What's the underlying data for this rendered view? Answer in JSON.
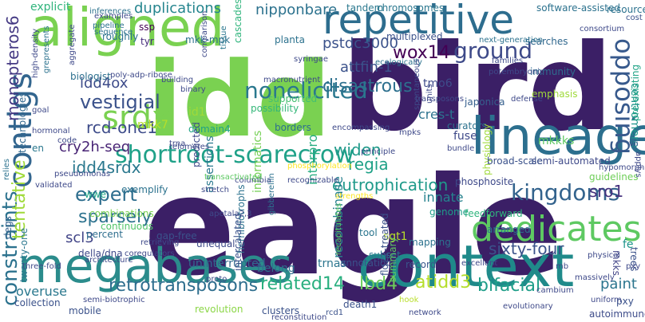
{
  "words": [
    {
      "text": "eagle",
      "color": "#3b1f66"
    },
    {
      "text": "bird",
      "color": "#3b1f66"
    },
    {
      "text": "idd",
      "color": "#7ad151"
    },
    {
      "text": "aligned",
      "color": "#7ad151"
    },
    {
      "text": "context",
      "color": "#1f8a8a"
    },
    {
      "text": "megabases",
      "color": "#2b8c8c"
    },
    {
      "text": "lineage",
      "color": "#2c6f8e"
    },
    {
      "text": "repetitive",
      "color": "#2d6d8e"
    },
    {
      "text": "contigs",
      "color": "#32658e"
    },
    {
      "text": "dedicates",
      "color": "#5ec962"
    },
    {
      "text": "shortroot-scarecrow",
      "color": "#1fa188"
    },
    {
      "text": "kingdoms",
      "color": "#33638d"
    },
    {
      "text": "ground",
      "color": "#3e4a89"
    },
    {
      "text": "opposing",
      "color": "#37598c"
    },
    {
      "text": "srdx",
      "color": "#7ad151"
    },
    {
      "text": "nonelicited",
      "color": "#2a788e"
    },
    {
      "text": "retrotransposons",
      "color": "#2e6e8e"
    },
    {
      "text": "vestigial",
      "color": "#3b528b"
    },
    {
      "text": "constraints",
      "color": "#2c728e"
    },
    {
      "text": "monopteros6",
      "color": "#443983"
    },
    {
      "text": "tentative",
      "color": "#a0da39"
    },
    {
      "text": "expert",
      "color": "#2e6e8e"
    },
    {
      "text": "sixty-four",
      "color": "#3b528b"
    },
    {
      "text": "eutrophication",
      "color": "#1f9a8a"
    },
    {
      "text": "related14",
      "color": "#29af7f"
    },
    {
      "text": "sparsely",
      "color": "#2c728e"
    },
    {
      "text": "wox14",
      "color": "#440154"
    },
    {
      "text": "idd4ox",
      "color": "#3e4c8a"
    },
    {
      "text": "rcd-one1",
      "color": "#3e4c8a"
    },
    {
      "text": "cry2h-seq",
      "color": "#482475"
    },
    {
      "text": "idd4srdx",
      "color": "#2a788e"
    },
    {
      "text": "bifacial",
      "color": "#1f9e89"
    },
    {
      "text": "pstdc3000",
      "color": "#3b528b"
    },
    {
      "text": "lbd4",
      "color": "#6ccd5a"
    },
    {
      "text": "atidd3",
      "color": "#b5de2b"
    },
    {
      "text": "widen",
      "color": "#1f9a8a"
    },
    {
      "text": "regia",
      "color": "#1fa187"
    },
    {
      "text": "sro1",
      "color": "#46327e"
    },
    {
      "text": "scl3",
      "color": "#414487"
    },
    {
      "text": "attfin-1",
      "color": "#3b528b"
    },
    {
      "text": "disastrous",
      "color": "#2d708e"
    },
    {
      "text": "duplications",
      "color": "#25858e"
    },
    {
      "text": "nipponbare",
      "color": "#2c728e"
    },
    {
      "text": "explicit",
      "color": "#2fb47c"
    },
    {
      "text": "interpro",
      "color": "#27ad81"
    },
    {
      "text": "recombinase",
      "color": "#27808e"
    },
    {
      "text": "tmo6",
      "color": "#3e4c8a"
    },
    {
      "text": "cres-t",
      "color": "#2c728e"
    },
    {
      "text": "paint",
      "color": "#2b758e"
    },
    {
      "text": "innate",
      "color": "#26828e"
    },
    {
      "text": "centromere",
      "color": "#1f958b"
    },
    {
      "text": "wwe",
      "color": "#20a486"
    },
    {
      "text": "sgt1",
      "color": "#b8de29"
    },
    {
      "text": "mkk7",
      "color": "#b5de2b"
    },
    {
      "text": "id1",
      "color": "#a0da39"
    },
    {
      "text": "mkkks",
      "color": "#5ec962"
    },
    {
      "text": "overuse",
      "color": "#2a788e"
    },
    {
      "text": "belong",
      "color": "#2e6e8e"
    },
    {
      "text": "trnas",
      "color": "#2b758e"
    },
    {
      "text": "uninterrupted",
      "color": "#31688e"
    },
    {
      "text": "annotations",
      "color": "#3b528b"
    },
    {
      "text": "record",
      "color": "#39568c"
    },
    {
      "text": "autoimmune",
      "color": "#3e4c8a"
    },
    {
      "text": "fuse",
      "color": "#3e4989"
    },
    {
      "text": "domain4",
      "color": "#20a386"
    },
    {
      "text": "assertions",
      "color": "#2a788e"
    },
    {
      "text": "informatics",
      "color": "#75d054"
    },
    {
      "text": "mapping",
      "color": "#2c728e"
    },
    {
      "text": "genome",
      "color": "#1e9c89"
    },
    {
      "text": "arranged",
      "color": "#2b748e"
    },
    {
      "text": "feedforward",
      "color": "#2fb47c"
    },
    {
      "text": "phosphosite",
      "color": "#3e4989"
    },
    {
      "text": "curators",
      "color": "#2c728e"
    },
    {
      "text": "japonica",
      "color": "#355f8d"
    },
    {
      "text": "immunity",
      "color": "#2f6c8e"
    },
    {
      "text": "searches",
      "color": "#31688e"
    },
    {
      "text": "emphasis",
      "color": "#9fda3a"
    },
    {
      "text": "guidelines",
      "color": "#6ece58"
    },
    {
      "text": "pxy",
      "color": "#3b528b"
    },
    {
      "text": "mkks",
      "color": "#414487"
    },
    {
      "text": "trees",
      "color": "#3b528b"
    },
    {
      "text": "fe",
      "color": "#1f958b"
    },
    {
      "text": "pre-existing",
      "color": "#20a386"
    },
    {
      "text": "resource",
      "color": "#2c728e"
    },
    {
      "text": "multiplexed",
      "color": "#3b528b"
    },
    {
      "text": "chromosomes",
      "color": "#2a778e"
    },
    {
      "text": "cascades",
      "color": "#2fb47c"
    },
    {
      "text": "tyr",
      "color": "#472d7b"
    },
    {
      "text": "ssp",
      "color": "#440154"
    },
    {
      "text": "possibility",
      "color": "#35b779"
    },
    {
      "text": "supported",
      "color": "#44bf70"
    },
    {
      "text": "borders",
      "color": "#2d708e"
    },
    {
      "text": "predicted",
      "color": "#3e4a89"
    },
    {
      "text": "unequal",
      "color": "#3e4a89"
    },
    {
      "text": "continuous",
      "color": "#52c569"
    },
    {
      "text": "percent",
      "color": "#2e6e8e"
    },
    {
      "text": "combinations",
      "color": "#7ad151"
    },
    {
      "text": "exemplify",
      "color": "#2c728e"
    },
    {
      "text": "en",
      "color": "#2a788e"
    },
    {
      "text": "degs",
      "color": "#34618d"
    },
    {
      "text": "biologist",
      "color": "#2d708e"
    },
    {
      "text": "roughly",
      "color": "#2c728e"
    },
    {
      "text": "mkk-mpk",
      "color": "#2c728e"
    },
    {
      "text": "planta",
      "color": "#2c728e"
    },
    {
      "text": "tissue",
      "color": "#2a778e"
    },
    {
      "text": "tandem",
      "color": "#2a788e"
    },
    {
      "text": "software-assisted",
      "color": "#2c728e"
    },
    {
      "text": "next-generation",
      "color": "#2c728e"
    },
    {
      "text": "families",
      "color": "#3e4989"
    },
    {
      "text": "subset",
      "color": "#2a778e"
    },
    {
      "text": "tool",
      "color": "#2b758e"
    },
    {
      "text": "summary",
      "color": "#5ec962"
    },
    {
      "text": "revolution",
      "color": "#8bd646"
    },
    {
      "text": "clusters",
      "color": "#3b528b"
    },
    {
      "text": "mobile",
      "color": "#3b528b"
    },
    {
      "text": "collection",
      "color": "#3b528b"
    },
    {
      "text": "twenty-one",
      "color": "#2a778e"
    },
    {
      "text": "technologies",
      "color": "#31688e"
    },
    {
      "text": "relies",
      "color": "#2c728e"
    },
    {
      "text": "ecologically",
      "color": "#2c728e"
    },
    {
      "text": "inferences",
      "color": "#2c728e"
    },
    {
      "text": "pipeline",
      "color": "#2c728e"
    },
    {
      "text": "sequence",
      "color": "#2c728e"
    },
    {
      "text": "hemibiotrophs",
      "color": "#2c728e"
    },
    {
      "text": "gibberellin",
      "color": "#2c728e"
    },
    {
      "text": "della/dna",
      "color": "#3e4989"
    },
    {
      "text": "apetala2,3",
      "color": "#3e4989"
    },
    {
      "text": "intercalated",
      "color": "#3b528b"
    },
    {
      "text": "gap-free",
      "color": "#3b528b"
    },
    {
      "text": "flg22-treated",
      "color": "#3b528b"
    },
    {
      "text": "death1",
      "color": "#3b528b"
    },
    {
      "text": "rcd1",
      "color": "#3b528b"
    },
    {
      "text": "physiology",
      "color": "#9fda3a"
    },
    {
      "text": "semi-automated",
      "color": "#3e4989"
    },
    {
      "text": "broad-scale",
      "color": "#3b528b"
    },
    {
      "text": "consortium",
      "color": "#3e4989"
    },
    {
      "text": "cost",
      "color": "#3b528b"
    },
    {
      "text": "transposons",
      "color": "#3e4989"
    },
    {
      "text": "mpks",
      "color": "#3e4989"
    },
    {
      "text": "defense",
      "color": "#3e4989"
    },
    {
      "text": "bundle",
      "color": "#3e4989"
    },
    {
      "text": "cambium",
      "color": "#3e4989"
    },
    {
      "text": "excellent",
      "color": "#3e4989"
    },
    {
      "text": "network",
      "color": "#3e4989"
    },
    {
      "text": "evolutionary",
      "color": "#3e4989"
    },
    {
      "text": "uniform",
      "color": "#3e4989"
    },
    {
      "text": "massively",
      "color": "#3e4989"
    },
    {
      "text": "reconstitution",
      "color": "#3e4989"
    },
    {
      "text": "hook",
      "color": "#b8de29"
    },
    {
      "text": "strengths",
      "color": "#fde725"
    },
    {
      "text": "recapitulates",
      "color": "#5ec962"
    },
    {
      "text": "recognizable",
      "color": "#3e4989"
    },
    {
      "text": "columbia",
      "color": "#3e4989"
    },
    {
      "text": "stretch",
      "color": "#3e4989"
    },
    {
      "text": "transactivated",
      "color": "#5ec962"
    },
    {
      "text": "retrieving",
      "color": "#3e4989"
    },
    {
      "text": "coregulators",
      "color": "#3e4989"
    },
    {
      "text": "architecture",
      "color": "#3e4989"
    },
    {
      "text": "three-fold",
      "color": "#3e4989"
    },
    {
      "text": "semi-biotrophic",
      "color": "#3e4989"
    },
    {
      "text": "pseudomonas",
      "color": "#3e4989"
    },
    {
      "text": "validated",
      "color": "#3e4989"
    },
    {
      "text": "hormonal",
      "color": "#3e4989"
    },
    {
      "text": "code",
      "color": "#3e4989"
    },
    {
      "text": "trna",
      "color": "#3e4989"
    },
    {
      "text": "telomeres",
      "color": "#3e4989"
    },
    {
      "text": "binary",
      "color": "#3e4989"
    },
    {
      "text": "building",
      "color": "#3e4989"
    },
    {
      "text": "syringae",
      "color": "#3e4989"
    },
    {
      "text": "macronutrient",
      "color": "#3e4989"
    },
    {
      "text": "comparison",
      "color": "#3e4989"
    },
    {
      "text": "poly-adp-ribose",
      "color": "#3e4989"
    },
    {
      "text": "aggregate",
      "color": "#3e4989"
    },
    {
      "text": "examples",
      "color": "#3e4989"
    },
    {
      "text": "high-density",
      "color": "#3e4989"
    },
    {
      "text": "goal",
      "color": "#3e4989"
    },
    {
      "text": "grepresents",
      "color": "#2c728e"
    },
    {
      "text": "principle",
      "color": "#3e4989"
    },
    {
      "text": "phosphorylation",
      "color": "#fde725"
    },
    {
      "text": "spontaneous",
      "color": "#3e4989"
    },
    {
      "text": "units",
      "color": "#3e4989"
    },
    {
      "text": "encompassing",
      "color": "#3e4989"
    },
    {
      "text": "hypomorphic",
      "color": "#3e4989"
    },
    {
      "text": "applys",
      "color": "#3e4989"
    },
    {
      "text": "vii",
      "color": "#3e4989"
    },
    {
      "text": "physical",
      "color": "#3e4989"
    },
    {
      "text": "mb",
      "color": "#3e4989"
    },
    {
      "text": "proto",
      "color": "#3e4989"
    },
    {
      "text": "pxy",
      "color": "#3e4989"
    },
    {
      "text": "potembryonic",
      "color": "#3e4989"
    }
  ]
}
